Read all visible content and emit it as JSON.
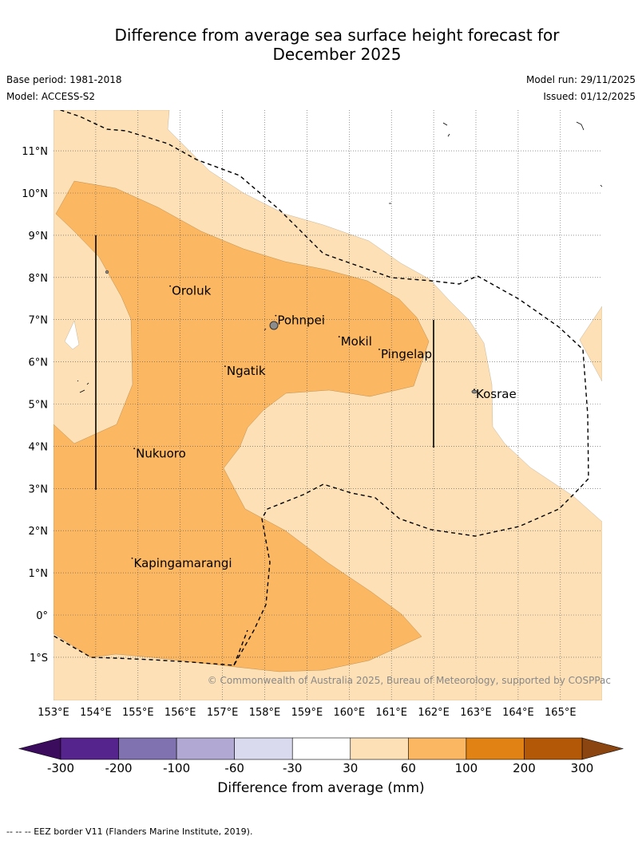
{
  "title": "Difference from average sea surface height forecast for December 2025",
  "title_line1": "Difference from average sea surface height forecast for",
  "title_line2": "December 2025",
  "base_period": "Base period: 1981-2018",
  "model": "Model: ACCESS-S2",
  "model_run": "Model run: 29/11/2025",
  "issued": "Issued: 01/12/2025",
  "copyright": "© Commonwealth of Australia 2025, Bureau of Meteorology, supported by COSPPac",
  "footer": "-- -- -- EEZ border V11 (Flanders Marine Institute, 2019).",
  "map": {
    "lon_range": [
      153,
      166
    ],
    "lat_range": [
      -2,
      12
    ],
    "lon_ticks": [
      {
        "v": 153,
        "label": "153°E"
      },
      {
        "v": 154,
        "label": "154°E"
      },
      {
        "v": 155,
        "label": "155°E"
      },
      {
        "v": 156,
        "label": "156°E"
      },
      {
        "v": 157,
        "label": "157°E"
      },
      {
        "v": 158,
        "label": "158°E"
      },
      {
        "v": 159,
        "label": "159°E"
      },
      {
        "v": 160,
        "label": "160°E"
      },
      {
        "v": 161,
        "label": "161°E"
      },
      {
        "v": 162,
        "label": "162°E"
      },
      {
        "v": 163,
        "label": "163°E"
      },
      {
        "v": 164,
        "label": "164°E"
      },
      {
        "v": 165,
        "label": "165°E"
      }
    ],
    "lat_ticks": [
      {
        "v": 11,
        "label": "11°N"
      },
      {
        "v": 10,
        "label": "10°N"
      },
      {
        "v": 9,
        "label": "9°N"
      },
      {
        "v": 8,
        "label": "8°N"
      },
      {
        "v": 7,
        "label": "7°N"
      },
      {
        "v": 6,
        "label": "6°N"
      },
      {
        "v": 5,
        "label": "5°N"
      },
      {
        "v": 4,
        "label": "4°N"
      },
      {
        "v": 3,
        "label": "3°N"
      },
      {
        "v": 2,
        "label": "2°N"
      },
      {
        "v": 1,
        "label": "1°N"
      },
      {
        "v": 0,
        "label": "0°"
      },
      {
        "v": -1,
        "label": "1°S"
      }
    ],
    "places": [
      {
        "name": "Oroluk",
        "lon": 155.8,
        "lat": 7.55
      },
      {
        "name": "Pohnpei",
        "lon": 158.3,
        "lat": 6.85
      },
      {
        "name": "Mokil",
        "lon": 159.8,
        "lat": 6.35
      },
      {
        "name": "Pingelap",
        "lon": 160.75,
        "lat": 6.05
      },
      {
        "name": "Ngatik",
        "lon": 157.1,
        "lat": 5.65
      },
      {
        "name": "Kosrae",
        "lon": 163.0,
        "lat": 5.1
      },
      {
        "name": "Nukuoro",
        "lon": 154.95,
        "lat": 3.7
      },
      {
        "name": "Kapingamarangi",
        "lon": 154.9,
        "lat": 1.1
      }
    ],
    "colors": {
      "light_orange": "#fde0b6",
      "medium_orange": "#fbb761",
      "ocean_white": "#ffffff",
      "island": "#8c8c8c"
    }
  },
  "colorbar": {
    "label": "Difference from average (mm)",
    "ticks": [
      "-300",
      "-200",
      "-100",
      "-60",
      "-30",
      "30",
      "60",
      "100",
      "200",
      "300"
    ],
    "colors": [
      "#55248c",
      "#8071b0",
      "#b1a9d3",
      "#d9daed",
      "#ffffff",
      "#fde0b6",
      "#fbb761",
      "#e08214",
      "#b35806"
    ],
    "under_color": "#3b0b5e",
    "over_color": "#8a4510"
  }
}
